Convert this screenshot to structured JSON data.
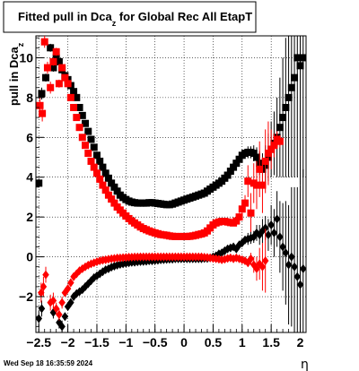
{
  "chart_data": {
    "type": "scatter",
    "title_main": "Fitted pull in Dca",
    "title_sub": "z",
    "title_tail": " for Global Rec All EtapT",
    "ylabel_main": "pull in Dca",
    "ylabel_sub": "z",
    "xlabel": "η",
    "xlim": [
      -2.55,
      2.1
    ],
    "ylim": [
      -3.8,
      11.1
    ],
    "xticks": [
      -2.5,
      -2,
      -1.5,
      -1,
      -0.5,
      0,
      0.5,
      1,
      1.5,
      2
    ],
    "xtick_labels": [
      "−2.5",
      "−2",
      "−1.5",
      "−1",
      "−0.5",
      "0",
      "0.5",
      "1",
      "1.5",
      "2"
    ],
    "yticks": [
      -2,
      0,
      2,
      4,
      6,
      8,
      10
    ],
    "ytick_labels": [
      "−2",
      "0",
      "2",
      "4",
      "6",
      "8",
      "10"
    ],
    "grid": true,
    "series": [
      {
        "marker": "square",
        "color": "#000000",
        "x": [
          -2.5,
          -2.45,
          -2.38,
          -2.3,
          -2.25,
          -2.2,
          -2.15,
          -2.1,
          -2.05,
          -2.0,
          -1.95,
          -1.9,
          -1.85,
          -1.8,
          -1.75,
          -1.7,
          -1.65,
          -1.6,
          -1.55,
          -1.5,
          -1.45,
          -1.4,
          -1.35,
          -1.3,
          -1.25,
          -1.2,
          -1.15,
          -1.1,
          -1.05,
          -1.0,
          -0.95,
          -0.9,
          -0.85,
          -0.8,
          -0.75,
          -0.7,
          -0.65,
          -0.6,
          -0.55,
          -0.5,
          -0.45,
          -0.4,
          -0.35,
          -0.3,
          -0.25,
          -0.2,
          -0.15,
          -0.1,
          -0.05,
          0.0,
          0.05,
          0.1,
          0.15,
          0.2,
          0.25,
          0.3,
          0.35,
          0.4,
          0.45,
          0.5,
          0.55,
          0.6,
          0.65,
          0.7,
          0.75,
          0.8,
          0.85,
          0.9,
          0.95,
          1.0,
          1.05,
          1.1,
          1.15,
          1.2,
          1.25,
          1.3,
          1.35,
          1.4,
          1.45,
          1.5,
          1.55,
          1.6,
          1.65,
          1.7,
          1.75,
          1.8,
          1.85,
          1.9,
          1.95,
          2.0,
          2.05
        ],
        "y": [
          3.7,
          8.2,
          9.0,
          10.5,
          9.5,
          10.0,
          9.8,
          9.4,
          9.1,
          8.9,
          8.6,
          8.3,
          8.0,
          7.5,
          7.1,
          6.7,
          6.3,
          5.9,
          5.5,
          5.1,
          4.8,
          4.5,
          4.2,
          3.95,
          3.7,
          3.5,
          3.3,
          3.1,
          2.98,
          2.88,
          2.8,
          2.75,
          2.72,
          2.7,
          2.7,
          2.7,
          2.7,
          2.72,
          2.72,
          2.7,
          2.68,
          2.66,
          2.64,
          2.62,
          2.62,
          2.65,
          2.7,
          2.75,
          2.8,
          2.85,
          2.9,
          2.95,
          3.0,
          3.05,
          3.1,
          3.15,
          3.2,
          3.3,
          3.4,
          3.5,
          3.6,
          3.7,
          3.8,
          3.95,
          4.1,
          4.3,
          4.5,
          4.7,
          4.9,
          5.1,
          5.2,
          5.25,
          5.25,
          5.2,
          5.0,
          4.7,
          4.4,
          4.6,
          5.0,
          5.4,
          5.7,
          6.0,
          6.5,
          7.0,
          7.5,
          8.0,
          8.5,
          9.0,
          10.0,
          9.6,
          10.0
        ],
        "err": [
          0.2,
          0.3,
          0.2,
          0.2,
          0.2,
          0.1,
          0.1,
          0.1,
          0.1,
          0.1,
          0.1,
          0.1,
          0.1,
          0.1,
          0.1,
          0.1,
          0.1,
          0.1,
          0.1,
          0.1,
          0.1,
          0.1,
          0.1,
          0.1,
          0.1,
          0.1,
          0.1,
          0.1,
          0.1,
          0.1,
          0.1,
          0.1,
          0.1,
          0.1,
          0.1,
          0.1,
          0.1,
          0.1,
          0.1,
          0.1,
          0.1,
          0.1,
          0.1,
          0.1,
          0.1,
          0.1,
          0.1,
          0.1,
          0.1,
          0.1,
          0.1,
          0.1,
          0.1,
          0.1,
          0.1,
          0.1,
          0.1,
          0.1,
          0.1,
          0.1,
          0.1,
          0.1,
          0.1,
          0.1,
          0.1,
          0.1,
          0.1,
          0.1,
          0.1,
          0.2,
          0.2,
          0.3,
          0.3,
          0.4,
          0.5,
          0.6,
          0.8,
          1.0,
          1.2,
          1.4,
          1.6,
          2.0,
          2.5,
          3.0,
          3.5,
          4.0,
          4.5,
          5.0,
          6.0,
          6.0,
          6.0
        ]
      },
      {
        "marker": "square",
        "color": "#ff0000",
        "x": [
          -2.48,
          -2.44,
          -2.4,
          -2.35,
          -2.3,
          -2.25,
          -2.2,
          -2.15,
          -2.1,
          -2.05,
          -2.0,
          -1.95,
          -1.9,
          -1.85,
          -1.8,
          -1.75,
          -1.7,
          -1.65,
          -1.6,
          -1.55,
          -1.5,
          -1.45,
          -1.4,
          -1.35,
          -1.3,
          -1.25,
          -1.2,
          -1.15,
          -1.1,
          -1.05,
          -1.0,
          -0.95,
          -0.9,
          -0.85,
          -0.8,
          -0.75,
          -0.7,
          -0.65,
          -0.6,
          -0.55,
          -0.5,
          -0.45,
          -0.4,
          -0.35,
          -0.3,
          -0.25,
          -0.2,
          -0.15,
          -0.1,
          -0.05,
          0.0,
          0.05,
          0.1,
          0.15,
          0.2,
          0.25,
          0.3,
          0.35,
          0.4,
          0.45,
          0.5,
          0.55,
          0.6,
          0.65,
          0.7,
          0.75,
          0.8,
          0.85,
          0.9,
          0.95,
          1.0,
          1.05,
          1.1,
          1.15,
          1.2,
          1.25,
          1.3,
          1.35,
          1.4,
          1.45,
          1.5,
          1.55,
          1.6,
          1.65
        ],
        "y": [
          7.6,
          7.2,
          10.8,
          9.5,
          8.5,
          9.8,
          10.3,
          8.7,
          9.5,
          9.0,
          8.7,
          8.0,
          7.5,
          7.0,
          6.5,
          6.0,
          5.6,
          5.2,
          4.8,
          4.5,
          4.2,
          3.9,
          3.6,
          3.35,
          3.1,
          2.9,
          2.7,
          2.5,
          2.35,
          2.2,
          2.05,
          1.92,
          1.8,
          1.7,
          1.6,
          1.5,
          1.42,
          1.36,
          1.3,
          1.25,
          1.2,
          1.16,
          1.12,
          1.1,
          1.08,
          1.05,
          1.03,
          1.02,
          1.02,
          1.02,
          1.02,
          1.02,
          1.03,
          1.05,
          1.08,
          1.12,
          1.15,
          1.2,
          1.3,
          1.45,
          1.6,
          1.7,
          1.75,
          1.78,
          1.78,
          1.75,
          1.72,
          1.7,
          1.8,
          2.0,
          2.4,
          2.7,
          3.8,
          2.2,
          3.7,
          3.6,
          4.4,
          3.6,
          4.8,
          5.2,
          5.4,
          5.6,
          5.9,
          5.8
        ],
        "err": [
          0.4,
          0.4,
          0.3,
          0.3,
          0.3,
          0.2,
          0.2,
          0.2,
          0.1,
          0.1,
          0.1,
          0.1,
          0.1,
          0.1,
          0.1,
          0.1,
          0.1,
          0.1,
          0.1,
          0.1,
          0.1,
          0.1,
          0.1,
          0.1,
          0.1,
          0.1,
          0.1,
          0.1,
          0.1,
          0.1,
          0.1,
          0.1,
          0.1,
          0.1,
          0.1,
          0.1,
          0.1,
          0.1,
          0.1,
          0.1,
          0.1,
          0.1,
          0.1,
          0.1,
          0.1,
          0.1,
          0.1,
          0.1,
          0.1,
          0.1,
          0.1,
          0.1,
          0.1,
          0.1,
          0.1,
          0.1,
          0.1,
          0.1,
          0.1,
          0.1,
          0.1,
          0.1,
          0.1,
          0.1,
          0.1,
          0.1,
          0.1,
          0.1,
          0.2,
          0.2,
          0.3,
          0.4,
          0.8,
          1.0,
          1.0,
          1.2,
          1.4,
          1.4,
          1.6,
          1.6,
          1.0,
          0.6,
          0.4,
          0.3
        ]
      },
      {
        "marker": "diamond",
        "color": "#000000",
        "x": [
          -2.5,
          -2.45,
          -2.25,
          -2.15,
          -2.1,
          -2.05,
          -2.0,
          -1.95,
          -1.9,
          -1.85,
          -1.8,
          -1.75,
          -1.7,
          -1.65,
          -1.6,
          -1.55,
          -1.5,
          -1.45,
          -1.4,
          -1.35,
          -1.3,
          -1.25,
          -1.2,
          -1.15,
          -1.1,
          -1.05,
          -1.0,
          -0.95,
          -0.9,
          -0.85,
          -0.8,
          -0.75,
          -0.7,
          -0.65,
          -0.6,
          -0.55,
          -0.5,
          -0.45,
          -0.4,
          -0.35,
          -0.3,
          -0.25,
          -0.2,
          -0.15,
          -0.1,
          -0.05,
          0.0,
          0.05,
          0.1,
          0.15,
          0.2,
          0.25,
          0.3,
          0.35,
          0.4,
          0.45,
          0.5,
          0.55,
          0.6,
          0.65,
          0.7,
          0.75,
          0.8,
          0.85,
          0.9,
          0.95,
          1.0,
          1.05,
          1.1,
          1.15,
          1.2,
          1.25,
          1.3,
          1.35,
          1.4,
          1.45,
          1.5,
          1.55,
          1.6,
          1.65,
          1.7,
          1.75,
          1.8,
          1.85,
          1.9,
          1.95,
          2.0,
          2.05
        ],
        "y": [
          -3.1,
          -2.6,
          -2.8,
          -3.3,
          -3.5,
          -3.0,
          -2.5,
          -2.3,
          -2.0,
          -1.85,
          -1.75,
          -1.65,
          -1.5,
          -1.35,
          -1.2,
          -1.05,
          -0.95,
          -0.85,
          -0.75,
          -0.65,
          -0.6,
          -0.52,
          -0.47,
          -0.42,
          -0.38,
          -0.35,
          -0.32,
          -0.3,
          -0.28,
          -0.27,
          -0.25,
          -0.24,
          -0.23,
          -0.22,
          -0.2,
          -0.2,
          -0.18,
          -0.17,
          -0.15,
          -0.14,
          -0.13,
          -0.12,
          -0.12,
          -0.1,
          -0.1,
          -0.1,
          -0.1,
          -0.1,
          -0.1,
          -0.1,
          -0.1,
          -0.1,
          -0.1,
          -0.08,
          -0.08,
          -0.05,
          0.0,
          0.05,
          0.15,
          0.2,
          0.3,
          0.4,
          0.45,
          0.5,
          0.4,
          0.6,
          0.7,
          0.85,
          0.9,
          0.95,
          1.0,
          1.2,
          1.1,
          1.3,
          1.45,
          1.1,
          1.6,
          1.2,
          1.9,
          1.0,
          0.5,
          0.2,
          -0.4,
          0.0,
          -0.5,
          -1.0,
          -1.4,
          -0.6
        ],
        "err": [
          0.4,
          0.4,
          0.3,
          0.3,
          0.3,
          0.2,
          0.2,
          0.2,
          0.1,
          0.1,
          0.1,
          0.1,
          0.1,
          0.1,
          0.1,
          0.1,
          0.1,
          0.1,
          0.1,
          0.1,
          0.1,
          0.1,
          0.1,
          0.1,
          0.1,
          0.1,
          0.1,
          0.1,
          0.1,
          0.1,
          0.1,
          0.1,
          0.1,
          0.1,
          0.1,
          0.1,
          0.1,
          0.1,
          0.1,
          0.1,
          0.1,
          0.1,
          0.1,
          0.1,
          0.1,
          0.1,
          0.1,
          0.1,
          0.1,
          0.1,
          0.1,
          0.1,
          0.1,
          0.1,
          0.1,
          0.1,
          0.1,
          0.1,
          0.1,
          0.1,
          0.1,
          0.1,
          0.1,
          0.1,
          0.1,
          0.2,
          0.2,
          0.2,
          0.3,
          0.3,
          0.3,
          0.4,
          0.5,
          0.6,
          0.6,
          0.8,
          1.0,
          1.2,
          1.4,
          1.8,
          2.2,
          2.6,
          3.0,
          3.5,
          4.0,
          4.5,
          5.0,
          5.0
        ]
      },
      {
        "marker": "diamond",
        "color": "#ff0000",
        "x": [
          -2.46,
          -2.42,
          -2.38,
          -2.3,
          -2.25,
          -2.2,
          -2.15,
          -2.1,
          -2.05,
          -2.0,
          -1.95,
          -1.9,
          -1.85,
          -1.8,
          -1.75,
          -1.7,
          -1.65,
          -1.6,
          -1.55,
          -1.5,
          -1.45,
          -1.4,
          -1.35,
          -1.3,
          -1.25,
          -1.2,
          -1.15,
          -1.1,
          -1.05,
          -1.0,
          -0.95,
          -0.9,
          -0.85,
          -0.8,
          -0.75,
          -0.7,
          -0.65,
          -0.6,
          -0.55,
          -0.5,
          -0.45,
          -0.4,
          -0.35,
          -0.3,
          -0.25,
          -0.2,
          -0.15,
          -0.1,
          -0.05,
          0.0,
          0.05,
          0.1,
          0.15,
          0.2,
          0.25,
          0.3,
          0.35,
          0.4,
          0.45,
          0.5,
          0.55,
          0.6,
          0.65,
          0.7,
          0.75,
          0.8,
          0.85,
          0.9,
          0.95,
          1.0,
          1.05,
          1.1,
          1.15,
          1.2,
          1.25,
          1.3,
          1.35,
          1.4
        ],
        "y": [
          -1.8,
          -1.5,
          -0.9,
          -2.3,
          -2.2,
          -2.6,
          -2.9,
          -2.3,
          -1.8,
          -1.6,
          -1.3,
          -1.0,
          -0.85,
          -0.7,
          -0.6,
          -0.5,
          -0.42,
          -0.35,
          -0.3,
          -0.25,
          -0.2,
          -0.17,
          -0.15,
          -0.12,
          -0.1,
          -0.08,
          -0.06,
          -0.05,
          -0.04,
          -0.03,
          -0.02,
          -0.02,
          -0.01,
          -0.01,
          0.0,
          0.0,
          0.0,
          0.0,
          0.0,
          0.0,
          0.0,
          0.0,
          0.0,
          0.0,
          0.0,
          0.0,
          0.0,
          0.0,
          0.0,
          0.0,
          0.0,
          0.0,
          0.0,
          0.0,
          0.0,
          0.0,
          -0.02,
          -0.03,
          -0.05,
          -0.08,
          -0.1,
          -0.12,
          -0.15,
          -0.12,
          -0.08,
          -0.05,
          -0.1,
          -0.05,
          -0.1,
          -0.15,
          -0.2,
          -0.3,
          -0.1,
          -0.4,
          -0.6,
          -0.35,
          -0.5,
          -0.2
        ],
        "err": [
          0.5,
          0.5,
          0.4,
          0.4,
          0.4,
          0.3,
          0.3,
          0.3,
          0.2,
          0.2,
          0.2,
          0.1,
          0.1,
          0.1,
          0.1,
          0.1,
          0.1,
          0.1,
          0.1,
          0.1,
          0.1,
          0.1,
          0.1,
          0.1,
          0.1,
          0.1,
          0.1,
          0.1,
          0.1,
          0.1,
          0.1,
          0.1,
          0.1,
          0.1,
          0.1,
          0.1,
          0.1,
          0.1,
          0.1,
          0.1,
          0.1,
          0.1,
          0.1,
          0.1,
          0.1,
          0.1,
          0.1,
          0.1,
          0.1,
          0.1,
          0.1,
          0.1,
          0.1,
          0.1,
          0.1,
          0.1,
          0.1,
          0.1,
          0.1,
          0.1,
          0.1,
          0.1,
          0.1,
          0.1,
          0.1,
          0.1,
          0.1,
          0.1,
          0.1,
          0.2,
          0.2,
          0.2,
          0.3,
          0.4,
          0.6,
          0.8,
          1.2,
          1.6
        ]
      }
    ]
  },
  "footer": {
    "timestamp": "Wed Sep 18 16:35:59 2024"
  }
}
